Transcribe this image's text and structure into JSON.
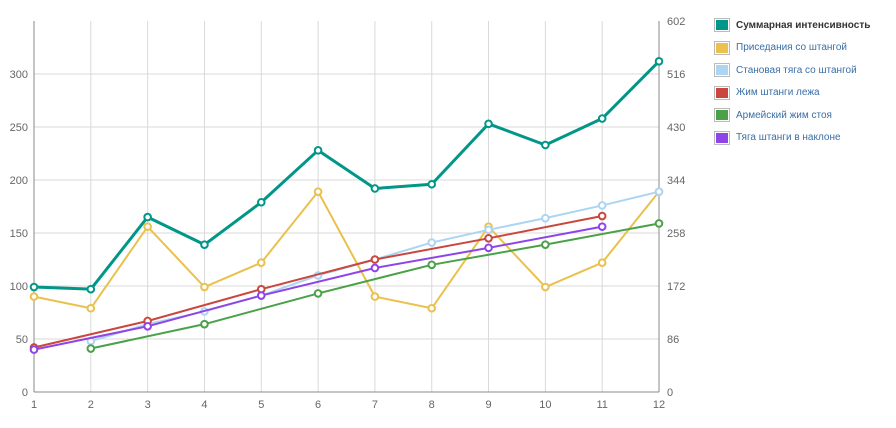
{
  "chart_data": {
    "type": "line",
    "x": [
      1,
      2,
      3,
      4,
      5,
      6,
      7,
      8,
      9,
      10,
      11,
      12
    ],
    "y_left": {
      "min": 0,
      "max": 350,
      "ticks": [
        0,
        50,
        100,
        150,
        200,
        250,
        300
      ]
    },
    "y_right": {
      "min": 0,
      "max": 602,
      "ticks": [
        0,
        86,
        172,
        258,
        344,
        430,
        516,
        602
      ]
    },
    "grid": true,
    "legend_position": "right",
    "series": [
      {
        "name": "Суммарная интенсивность",
        "color": "#009688",
        "width": 3,
        "axis": "left",
        "values": [
          99,
          97,
          165,
          139,
          179,
          228,
          192,
          196,
          253,
          233,
          258,
          312
        ]
      },
      {
        "name": "Приседания со штангой",
        "color": "#eac14d",
        "width": 2,
        "axis": "left",
        "values": [
          90,
          79,
          156,
          99,
          122,
          189,
          90,
          79,
          156,
          99,
          122,
          189
        ]
      },
      {
        "name": "Становая тяга со штангой",
        "color": "#acd5f2",
        "width": 2,
        "axis": "left",
        "values": [
          null,
          48,
          64,
          76,
          91,
          110,
          125,
          141,
          153,
          164,
          176,
          189
        ]
      },
      {
        "name": "Жим штанги лежа",
        "color": "#c9473e",
        "width": 2,
        "axis": "left",
        "values": [
          42,
          null,
          67,
          null,
          97,
          null,
          125,
          null,
          145,
          null,
          166,
          null
        ]
      },
      {
        "name": "Армейский жим стоя",
        "color": "#4aa148",
        "width": 2,
        "axis": "left",
        "values": [
          null,
          41,
          null,
          64,
          null,
          93,
          null,
          120,
          null,
          139,
          null,
          159
        ]
      },
      {
        "name": "Тяга штанги в наклоне",
        "color": "#8e44e8",
        "width": 2,
        "axis": "left",
        "values": [
          40,
          null,
          62,
          null,
          91,
          null,
          117,
          null,
          136,
          null,
          156,
          null
        ]
      }
    ]
  }
}
